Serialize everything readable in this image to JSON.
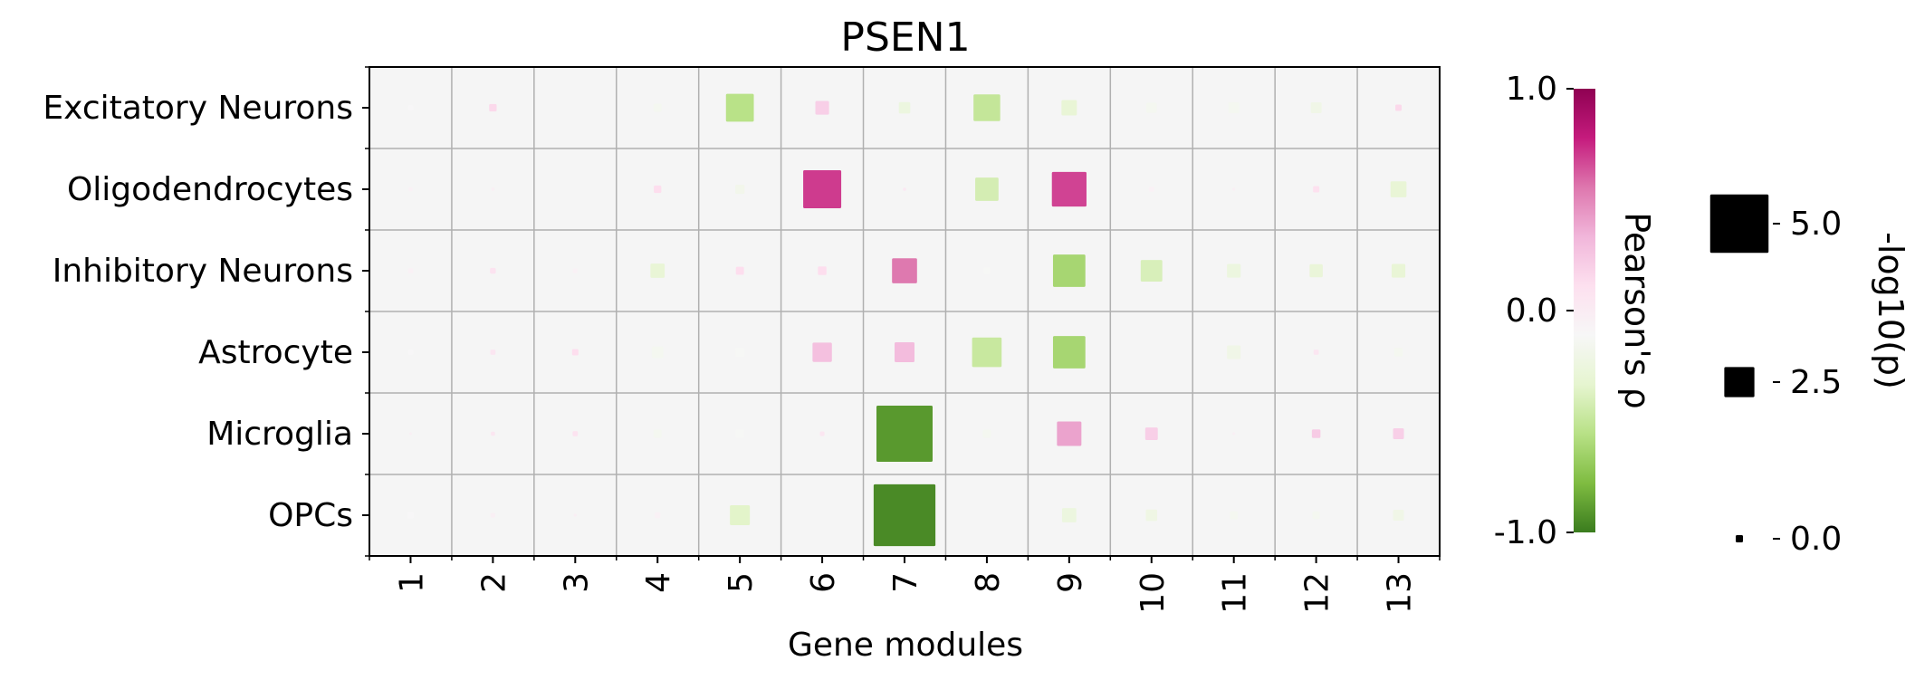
{
  "chart_data": {
    "type": "heatmap",
    "title": "PSEN1",
    "xlabel": "Gene modules",
    "ylabel": "",
    "rows": [
      "Excitatory Neurons",
      "Oligodendrocytes",
      "Inhibitory Neurons",
      "Astrocyte",
      "Microglia",
      "OPCs"
    ],
    "columns": [
      "1",
      "2",
      "3",
      "4",
      "5",
      "6",
      "7",
      "8",
      "9",
      "10",
      "11",
      "12",
      "13"
    ],
    "rho": [
      [
        -0.1,
        0.15,
        0.0,
        -0.15,
        -0.55,
        0.2,
        -0.25,
        -0.5,
        -0.3,
        -0.15,
        -0.15,
        -0.2,
        0.15
      ],
      [
        -0.05,
        -0.03,
        0.0,
        0.12,
        -0.18,
        0.7,
        0.03,
        -0.42,
        0.68,
        -0.05,
        -0.03,
        0.1,
        -0.3
      ],
      [
        -0.05,
        0.08,
        -0.05,
        -0.3,
        0.12,
        0.12,
        0.55,
        -0.12,
        -0.62,
        -0.4,
        -0.25,
        -0.28,
        -0.3
      ],
      [
        -0.1,
        0.05,
        0.12,
        -0.15,
        -0.12,
        0.28,
        0.3,
        -0.48,
        -0.62,
        0.0,
        -0.2,
        0.05,
        -0.15
      ],
      [
        -0.03,
        0.05,
        0.08,
        -0.15,
        -0.12,
        0.05,
        -0.9,
        -0.15,
        0.4,
        0.2,
        -0.03,
        0.22,
        0.2
      ],
      [
        -0.1,
        -0.03,
        -0.02,
        -0.05,
        -0.35,
        0.0,
        -0.95,
        0.0,
        -0.25,
        -0.22,
        -0.15,
        -0.15,
        -0.2
      ]
    ],
    "neg_log10_p": [
      [
        0.3,
        0.5,
        0.0,
        0.55,
        2.3,
        1.05,
        0.85,
        2.2,
        1.2,
        0.75,
        0.8,
        0.8,
        0.4
      ],
      [
        0.2,
        0.12,
        0.0,
        0.5,
        0.65,
        3.2,
        0.12,
        1.9,
        2.9,
        0.3,
        0.1,
        0.4,
        1.25
      ],
      [
        0.3,
        0.35,
        0.25,
        1.1,
        0.55,
        0.6,
        2.05,
        0.4,
        2.7,
        1.75,
        1.05,
        1.0,
        1.05
      ],
      [
        0.3,
        0.3,
        0.4,
        0.85,
        0.65,
        1.55,
        1.6,
        2.45,
        2.7,
        0.0,
        1.05,
        0.3,
        0.6
      ],
      [
        0.08,
        0.2,
        0.3,
        0.55,
        0.6,
        0.25,
        4.8,
        0.55,
        2.0,
        0.95,
        0.08,
        0.6,
        0.8
      ],
      [
        0.4,
        0.25,
        0.1,
        0.35,
        1.6,
        0.0,
        5.3,
        0.0,
        1.1,
        0.85,
        0.55,
        0.5,
        0.8
      ]
    ],
    "colorbar": {
      "label": "Pearson's ρ",
      "min": -1.0,
      "max": 1.0,
      "ticks": [
        "1.0",
        "0.0",
        "-1.0"
      ],
      "colormap": "PiYG",
      "colors": [
        "#3a7c1e",
        "#7fbc41",
        "#b8e186",
        "#e6f5d0",
        "#f7f7f7",
        "#fde0ef",
        "#f1b6da",
        "#de77ae",
        "#c51b7d",
        "#8e0152"
      ]
    },
    "size_legend": {
      "label": "-log10(p)",
      "values": [
        5.0,
        2.5,
        0.0
      ],
      "tick_labels": [
        "5.0",
        "2.5",
        "0.0"
      ],
      "marker_color": "#000000"
    },
    "grid": true,
    "background_color": "#f5f5f5",
    "grid_color": "#b0b0b0"
  }
}
